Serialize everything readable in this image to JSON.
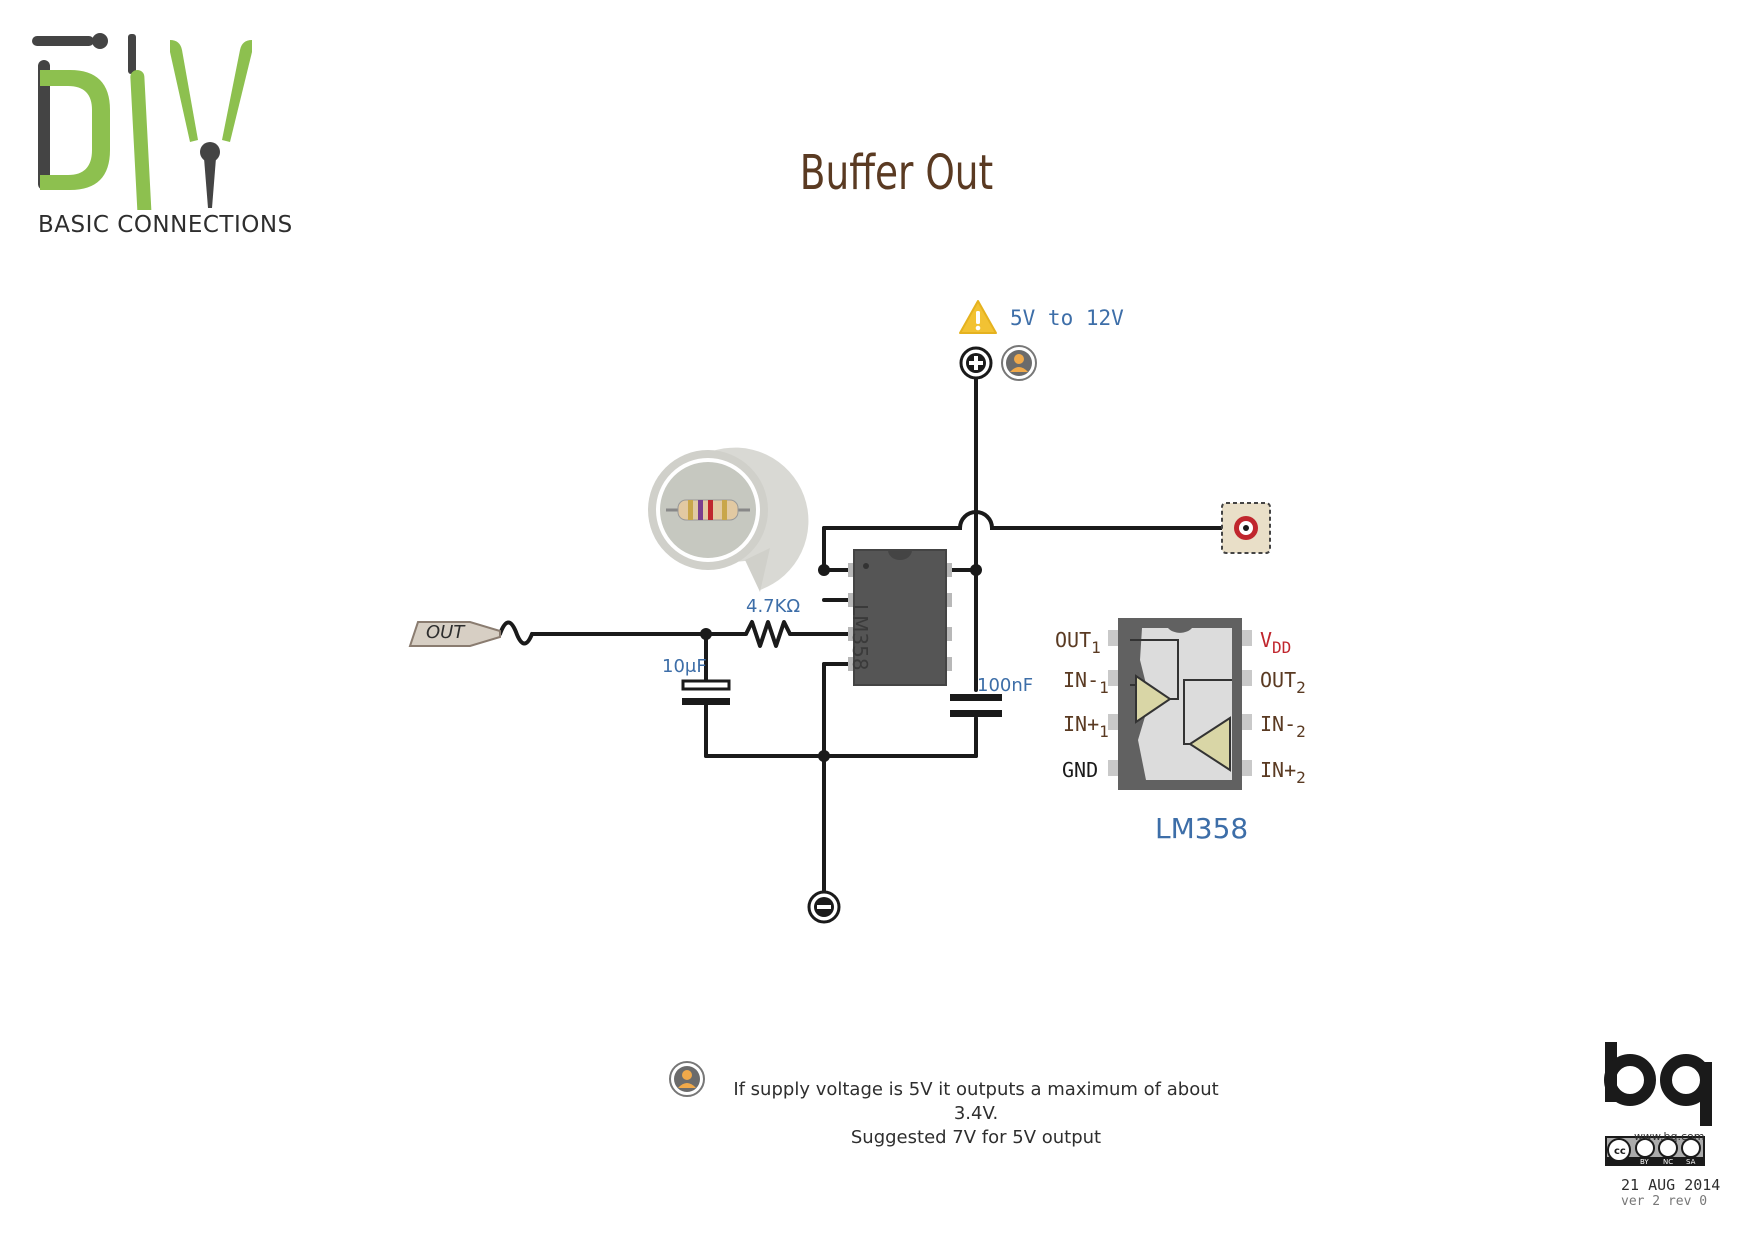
{
  "logo": {
    "wordmark": "DIY",
    "subtitle": "BASIC CONNECTIONS",
    "accent_color": "#8dc04f",
    "dark_color": "#444444"
  },
  "title": "Buffer Out",
  "supply": {
    "warning_icon": "warning-icon",
    "label": "5V to 12V",
    "positive_terminal_icon": "plus-terminal-icon",
    "note_icon": "user-note-icon"
  },
  "components": {
    "input_connector": "OUT",
    "resistor_value": "4.7KΩ",
    "capacitor_input_value": "10μF",
    "capacitor_decoupling_value": "100nF",
    "ic_body_label": "LM358",
    "output_jack_icon": "rca-jack-icon",
    "ground_terminal_icon": "minus-terminal-icon"
  },
  "pinout": {
    "chip_name": "LM358",
    "left_pins": [
      {
        "name": "OUT",
        "sub": "1"
      },
      {
        "name": "IN-",
        "sub": "1"
      },
      {
        "name": "IN+",
        "sub": "1"
      },
      {
        "name": "GND",
        "sub": ""
      }
    ],
    "right_pins": [
      {
        "name": "V",
        "sub": "DD"
      },
      {
        "name": "OUT",
        "sub": "2"
      },
      {
        "name": "IN-",
        "sub": "2"
      },
      {
        "name": "IN+",
        "sub": "2"
      }
    ],
    "vdd_color": "#c0262d"
  },
  "note": {
    "line1": "If supply voltage is 5V  it outputs a maximum of about 3.4V.",
    "line2": "Suggested 7V for 5V output"
  },
  "footer": {
    "brand": "bq",
    "url": "www.bq.com",
    "license": [
      "BY",
      "NC",
      "SA"
    ],
    "date": "21 AUG 2014",
    "version": "ver 2 rev 0"
  },
  "colors": {
    "wire": "#1a1a1a",
    "ic_body": "#555555",
    "label_blue": "#3d6ea8",
    "label_brown": "#5a3a22"
  }
}
